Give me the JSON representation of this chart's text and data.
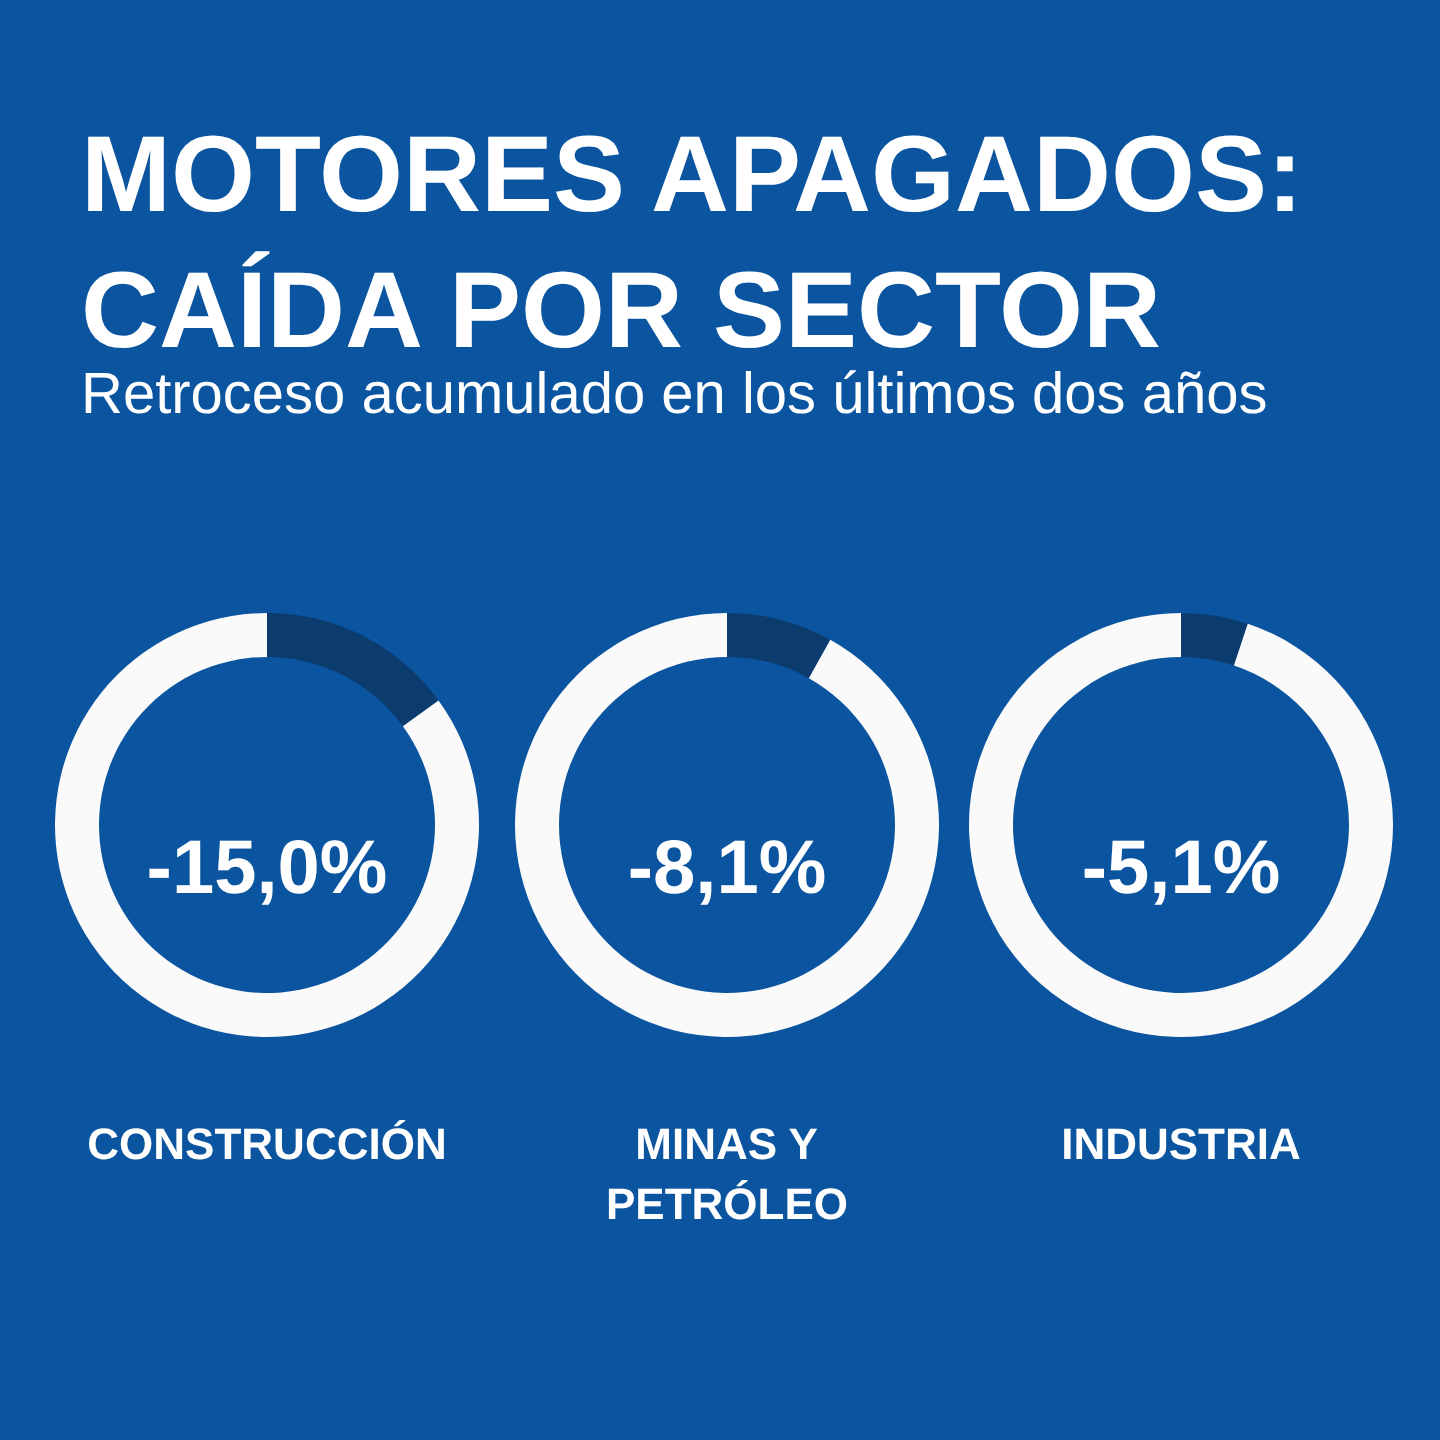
{
  "chart_data": [
    {
      "type": "donut",
      "title": "MOTORES APAGADOS:\nCAÍDA POR SECTOR",
      "subtitle": "Retroceso acumulado en los últimos dos años",
      "categories": [
        null,
        null
      ],
      "values": [
        15.0,
        85.0
      ],
      "colors": [
        "#0c3b6e",
        "#fafafa"
      ],
      "annotations": [
        "-15,0%"
      ],
      "xlabel": "CONSTRUCCIÓN"
    },
    {
      "type": "donut",
      "categories": [
        null,
        null
      ],
      "values": [
        8.1,
        91.9
      ],
      "colors": [
        "#0c3b6e",
        "#fafafa"
      ],
      "annotations": [
        "-8,1%"
      ],
      "xlabel": "MINAS Y\nPETRÓLEO"
    },
    {
      "type": "donut",
      "categories": [
        null,
        null
      ],
      "values": [
        5.1,
        94.9
      ],
      "colors": [
        "#0c3b6e",
        "#fafafa"
      ],
      "annotations": [
        "-5,1%"
      ],
      "xlabel": "INDUSTRIA"
    }
  ]
}
